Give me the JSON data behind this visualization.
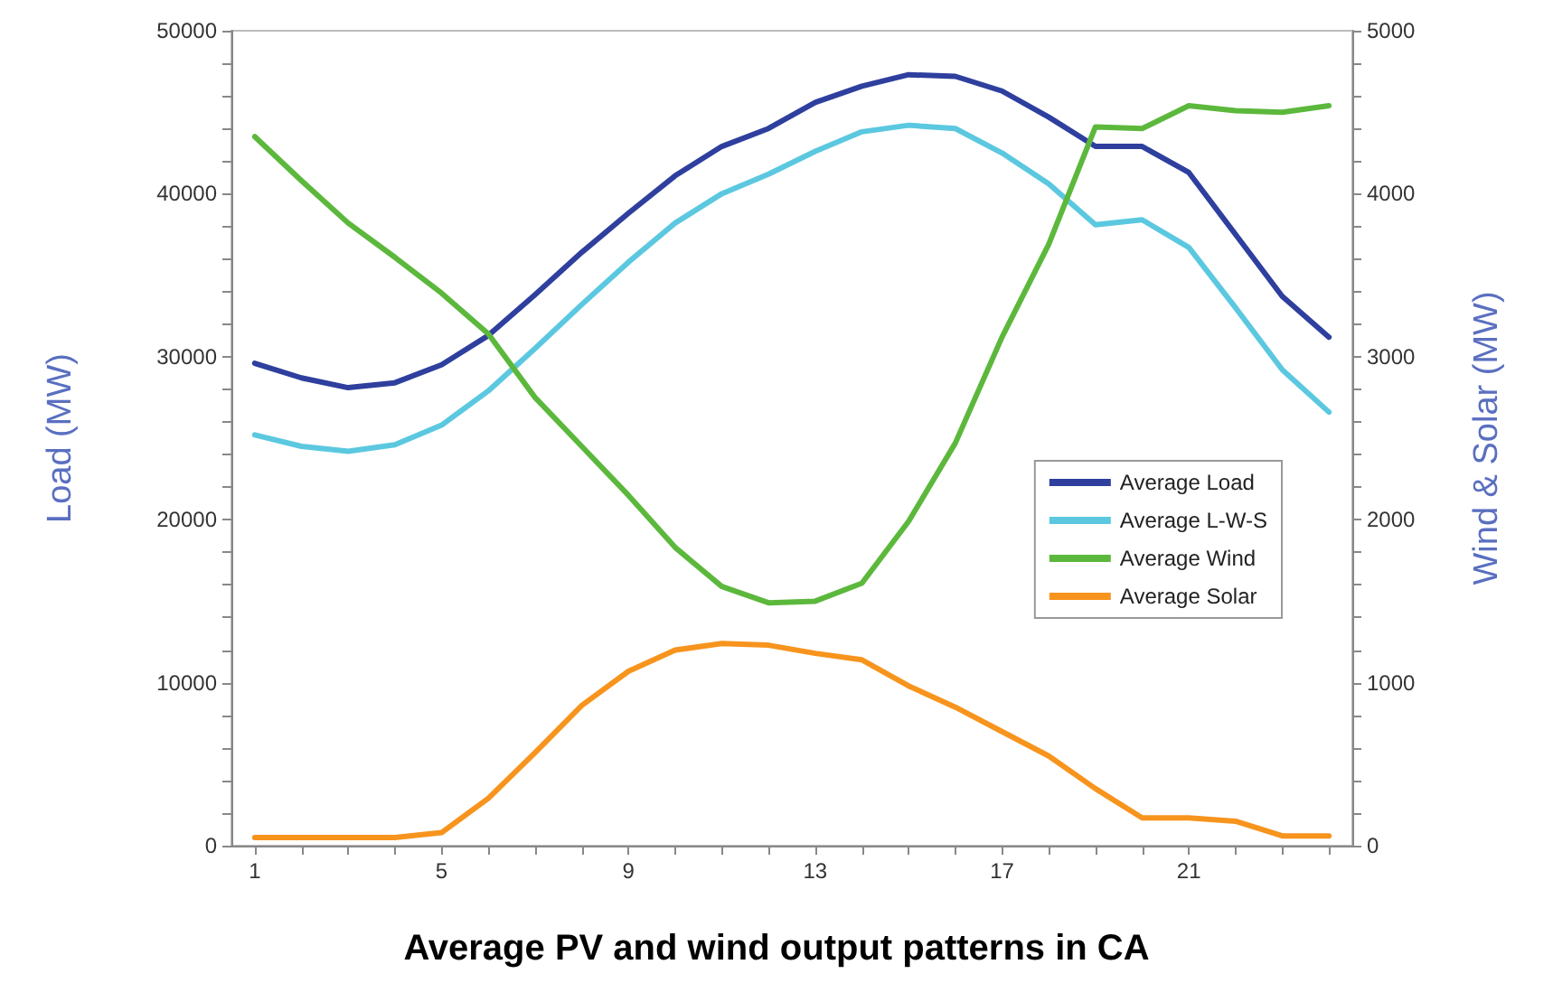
{
  "chart_data": {
    "type": "line",
    "title": "Average PV and wind output patterns in CA",
    "ylabel": "Load (MW)",
    "y2label": "Wind & Solar (MW)",
    "x": [
      1,
      2,
      3,
      4,
      5,
      6,
      7,
      8,
      9,
      10,
      11,
      12,
      13,
      14,
      15,
      16,
      17,
      18,
      19,
      20,
      21,
      22,
      23,
      24
    ],
    "series": [
      {
        "name": "Average Load",
        "color": "#2e3f9e",
        "values": [
          29600,
          28700,
          28100,
          28400,
          29500,
          31300,
          33800,
          36400,
          38800,
          41100,
          42900,
          44000,
          45600,
          46600,
          47300,
          47200,
          46300,
          44700,
          42900,
          42900,
          41300,
          37500,
          33700,
          31200
        ]
      },
      {
        "name": "Average L-W-S",
        "color": "#5bc8e0",
        "values": [
          25200,
          24500,
          24200,
          24600,
          25800,
          27900,
          30500,
          33200,
          35800,
          38200,
          40000,
          41200,
          42600,
          43800,
          44200,
          44000,
          42500,
          40600,
          38100,
          38400,
          36700,
          33000,
          29200,
          26600
        ]
      },
      {
        "name": "Average Wind",
        "color": "#5cb83c",
        "axis": "y2",
        "values": [
          4350,
          4080,
          3820,
          3610,
          3390,
          3140,
          2750,
          2450,
          2150,
          1830,
          1590,
          1490,
          1500,
          1610,
          1990,
          2470,
          3120,
          3690,
          4410,
          4400,
          4540,
          4510,
          4500,
          4540
        ]
      },
      {
        "name": "Average Solar",
        "color": "#f7941d",
        "axis": "y2",
        "values": [
          50,
          50,
          50,
          50,
          80,
          290,
          570,
          860,
          1070,
          1200,
          1240,
          1230,
          1180,
          1140,
          980,
          850,
          700,
          550,
          350,
          170,
          170,
          150,
          60,
          60
        ]
      }
    ],
    "xlim": [
      0.5,
      24.5
    ],
    "xticks": [
      1,
      {
        "value": 2,
        "label": null
      },
      {
        "value": 3,
        "label": null
      },
      {
        "value": 4,
        "label": null
      },
      5,
      {
        "value": 6,
        "label": null
      },
      {
        "value": 7,
        "label": null
      },
      {
        "value": 8,
        "label": null
      },
      9,
      {
        "value": 10,
        "label": null
      },
      {
        "value": 11,
        "label": null
      },
      {
        "value": 12,
        "label": null
      },
      13,
      {
        "value": 14,
        "label": null
      },
      {
        "value": 15,
        "label": null
      },
      {
        "value": 16,
        "label": null
      },
      17,
      {
        "value": 18,
        "label": null
      },
      {
        "value": 19,
        "label": null
      },
      {
        "value": 20,
        "label": null
      },
      21,
      {
        "value": 22,
        "label": null
      },
      {
        "value": 23,
        "label": null
      },
      {
        "value": 24,
        "label": null
      }
    ],
    "ylim": [
      0,
      50000
    ],
    "yticks": [
      0,
      {
        "value": 2000,
        "label": null
      },
      {
        "value": 4000,
        "label": null
      },
      {
        "value": 6000,
        "label": null
      },
      {
        "value": 8000,
        "label": null
      },
      10000,
      {
        "value": 12000,
        "label": null
      },
      {
        "value": 14000,
        "label": null
      },
      {
        "value": 16000,
        "label": null
      },
      {
        "value": 18000,
        "label": null
      },
      20000,
      {
        "value": 22000,
        "label": null
      },
      {
        "value": 24000,
        "label": null
      },
      {
        "value": 26000,
        "label": null
      },
      {
        "value": 28000,
        "label": null
      },
      30000,
      {
        "value": 32000,
        "label": null
      },
      {
        "value": 34000,
        "label": null
      },
      {
        "value": 36000,
        "label": null
      },
      {
        "value": 38000,
        "label": null
      },
      40000,
      {
        "value": 42000,
        "label": null
      },
      {
        "value": 44000,
        "label": null
      },
      {
        "value": 46000,
        "label": null
      },
      {
        "value": 48000,
        "label": null
      },
      50000
    ],
    "y2lim": [
      0,
      5000
    ],
    "y2ticks": [
      0,
      {
        "value": 200,
        "label": null
      },
      {
        "value": 400,
        "label": null
      },
      {
        "value": 600,
        "label": null
      },
      {
        "value": 800,
        "label": null
      },
      1000,
      {
        "value": 1200,
        "label": null
      },
      {
        "value": 1400,
        "label": null
      },
      {
        "value": 1600,
        "label": null
      },
      {
        "value": 1800,
        "label": null
      },
      2000,
      {
        "value": 2200,
        "label": null
      },
      {
        "value": 2400,
        "label": null
      },
      {
        "value": 2600,
        "label": null
      },
      {
        "value": 2800,
        "label": null
      },
      3000,
      {
        "value": 3200,
        "label": null
      },
      {
        "value": 3400,
        "label": null
      },
      {
        "value": 3600,
        "label": null
      },
      {
        "value": 3800,
        "label": null
      },
      4000,
      {
        "value": 4200,
        "label": null
      },
      {
        "value": 4400,
        "label": null
      },
      {
        "value": 4600,
        "label": null
      },
      {
        "value": 4800,
        "label": null
      },
      5000
    ],
    "grid": false,
    "legend": "right",
    "marker": "none",
    "line_style": "solid"
  }
}
